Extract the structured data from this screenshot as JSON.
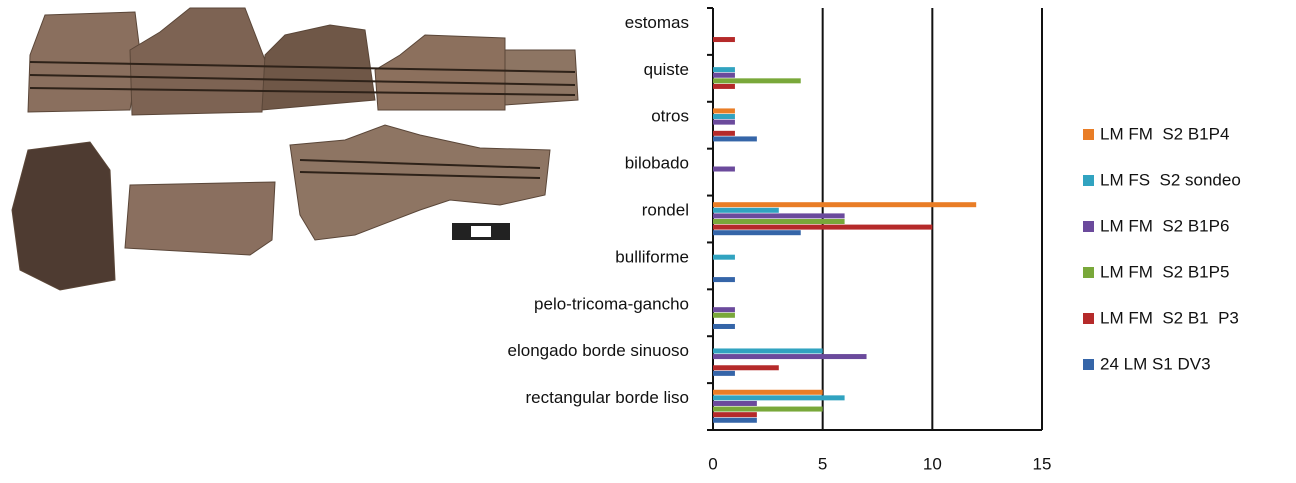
{
  "chart_data": {
    "type": "bar",
    "orientation": "horizontal",
    "categories": [
      "estomas",
      "quiste",
      "otros",
      "bilobado",
      "rondel",
      "bulliforme",
      "pelo-tricoma-gancho",
      "elongado borde sinuoso",
      "rectangular  borde liso"
    ],
    "series": [
      {
        "name": "LM FM  S2 B1P4",
        "color": "#e97d26",
        "values": [
          0,
          0,
          1,
          0,
          12,
          0,
          0,
          0,
          5
        ]
      },
      {
        "name": "LM FS  S2 sondeo",
        "color": "#31a3c0",
        "values": [
          0,
          1,
          1,
          0,
          3,
          1,
          0,
          5,
          6
        ]
      },
      {
        "name": "LM FM  S2 B1P6",
        "color": "#6b4a9c",
        "values": [
          0,
          1,
          1,
          1,
          6,
          0,
          1,
          7,
          2
        ]
      },
      {
        "name": "LM FM  S2 B1P5",
        "color": "#79a83a",
        "values": [
          0,
          4,
          0,
          0,
          6,
          0,
          1,
          0,
          5
        ]
      },
      {
        "name": "LM FM  S2 B1  P3",
        "color": "#b52a2a",
        "values": [
          1,
          1,
          1,
          0,
          10,
          0,
          0,
          3,
          2
        ]
      },
      {
        "name": "24 LM S1 DV3",
        "color": "#3565a8",
        "values": [
          0,
          0,
          2,
          0,
          4,
          1,
          1,
          1,
          2
        ]
      }
    ],
    "xlim": [
      0,
      15
    ],
    "xticks": [
      0,
      5,
      10,
      15
    ],
    "grid": true,
    "legend": "right"
  }
}
